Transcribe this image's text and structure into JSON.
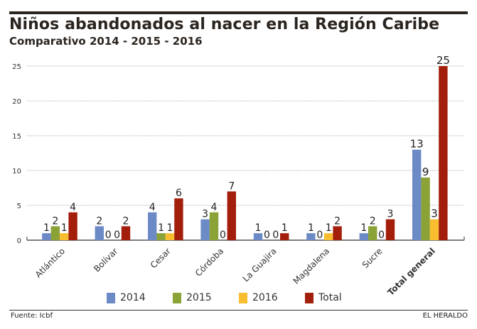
{
  "chart_data": {
    "type": "bar",
    "title": "Niños abandonados al nacer en la Región Caribe",
    "subtitle": "Comparativo 2014 - 2015 - 2016",
    "categories": [
      "Atlántico",
      "Bolívar",
      "Cesar",
      "Córdoba",
      "La Guajira",
      "Magdalena",
      "Sucre",
      "Total general"
    ],
    "series": [
      {
        "name": "2014",
        "color": "#6c8ac6",
        "values": [
          1,
          2,
          4,
          3,
          1,
          1,
          1,
          13
        ]
      },
      {
        "name": "2015",
        "color": "#8aa236",
        "values": [
          2,
          0,
          1,
          4,
          0,
          0,
          2,
          9
        ]
      },
      {
        "name": "2016",
        "color": "#f9bd30",
        "values": [
          1,
          0,
          1,
          0,
          0,
          1,
          0,
          3
        ]
      },
      {
        "name": "Total",
        "color": "#a31f0b",
        "values": [
          4,
          2,
          6,
          7,
          1,
          2,
          3,
          25
        ]
      }
    ],
    "ylim": [
      0,
      25
    ],
    "yticks": [
      0,
      5,
      10,
      15,
      20,
      25
    ],
    "grid": true,
    "legend_position": "bottom",
    "xlabel": "",
    "ylabel": ""
  },
  "footer": {
    "source": "Fuente: Icbf",
    "brand": "EL HERALDO"
  }
}
